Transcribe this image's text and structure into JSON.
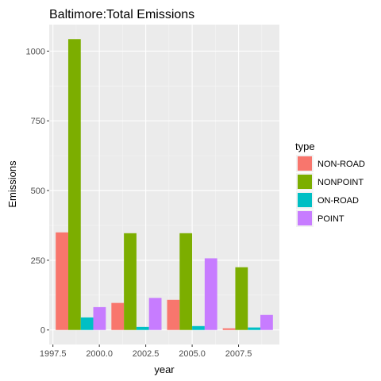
{
  "chart_data": {
    "type": "bar",
    "title": "Baltimore:Total Emissions",
    "xlabel": "year",
    "ylabel": "Emissions",
    "x_ticks": [
      1997.5,
      2000.0,
      2002.5,
      2005.0,
      2007.5
    ],
    "x_tick_labels": [
      "1997.5",
      "2000.0",
      "2002.5",
      "2005.0",
      "2007.5"
    ],
    "y_ticks": [
      0,
      250,
      500,
      750,
      1000
    ],
    "y_tick_labels": [
      "0",
      "250",
      "500",
      "750",
      "1000"
    ],
    "xlim": [
      1997.3,
      2009.7
    ],
    "ylim": [
      -52,
      1095
    ],
    "categories": [
      1999,
      2002,
      2005,
      2008
    ],
    "legend": {
      "title": "type",
      "placement": "right"
    },
    "grid": true,
    "series": [
      {
        "name": "NON-ROAD",
        "color": "#F8766D",
        "values": [
          350,
          97,
          108,
          6
        ]
      },
      {
        "name": "NONPOINT",
        "color": "#7CAE00",
        "values": [
          1043,
          347,
          347,
          225
        ]
      },
      {
        "name": "ON-ROAD",
        "color": "#00BFC4",
        "values": [
          45,
          11,
          14,
          9
        ]
      },
      {
        "name": "POINT",
        "color": "#C77CFF",
        "values": [
          82,
          115,
          257,
          54
        ]
      }
    ]
  }
}
